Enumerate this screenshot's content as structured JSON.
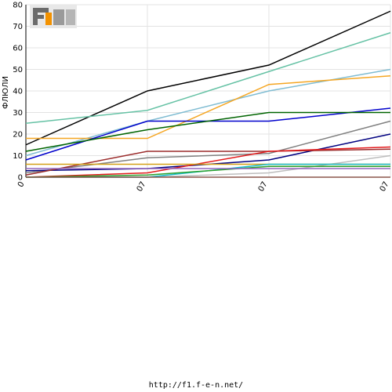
{
  "logo": {
    "text": "F1EN",
    "colors": {
      "gray": "#6b6b6b",
      "orange": "#f39200",
      "light": "#e8e8e8"
    }
  },
  "footer": {
    "url": "http://f1.f-e-n.net/"
  },
  "chart_data": {
    "type": "line",
    "title": "",
    "xlabel": "",
    "ylabel": "ФЛЮЛИ",
    "ylim": [
      0,
      80
    ],
    "yticks": [
      0,
      10,
      20,
      30,
      40,
      50,
      60,
      70,
      80
    ],
    "categories": [
      "0",
      "07",
      "07",
      "07"
    ],
    "grid": true,
    "series": [
      {
        "color": "#000000",
        "values": [
          15,
          40,
          52,
          77
        ]
      },
      {
        "color": "#66c2a5",
        "values": [
          25,
          31,
          49,
          67
        ]
      },
      {
        "color": "#7fbcd2",
        "values": [
          10,
          26,
          40,
          50
        ]
      },
      {
        "color": "#f5a623",
        "values": [
          18,
          18,
          43,
          47
        ]
      },
      {
        "color": "#0000cc",
        "values": [
          8,
          26,
          26,
          32
        ]
      },
      {
        "color": "#006400",
        "values": [
          12,
          22,
          30,
          30
        ]
      },
      {
        "color": "#808080",
        "values": [
          2,
          9,
          11,
          26
        ]
      },
      {
        "color": "#000080",
        "values": [
          3,
          4,
          8,
          20
        ]
      },
      {
        "color": "#9b2c2c",
        "values": [
          1,
          12,
          12,
          13
        ]
      },
      {
        "color": "#e31a1c",
        "values": [
          0,
          2,
          12,
          14
        ]
      },
      {
        "color": "#bdbdbd",
        "values": [
          0,
          0,
          2,
          10
        ]
      },
      {
        "color": "#d4a017",
        "values": [
          6,
          6,
          6,
          6
        ]
      },
      {
        "color": "#17becf",
        "values": [
          0,
          0,
          6,
          6
        ]
      },
      {
        "color": "#2ca02c",
        "values": [
          0,
          1,
          5,
          5
        ]
      },
      {
        "color": "#8c564b",
        "values": [
          0,
          0,
          0,
          0
        ]
      },
      {
        "color": "#9467bd",
        "values": [
          4,
          4,
          4,
          4
        ]
      }
    ]
  }
}
